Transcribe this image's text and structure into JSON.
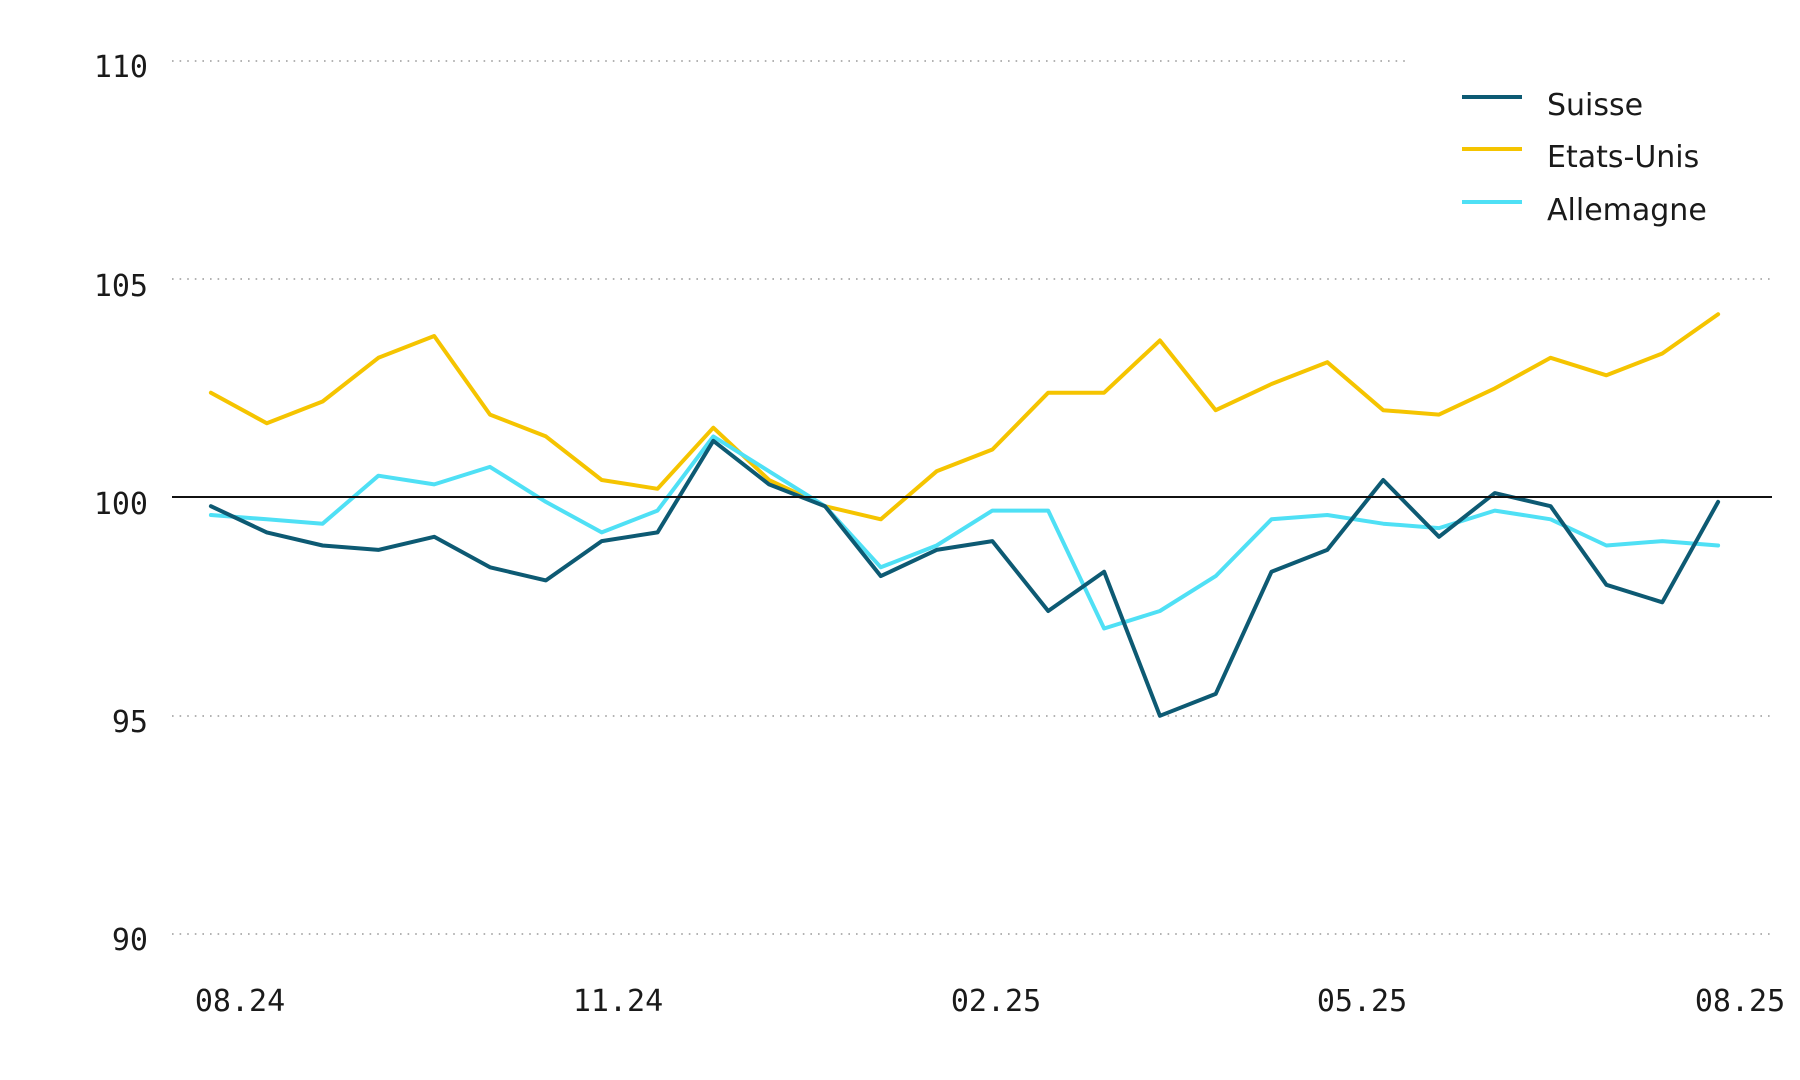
{
  "chart_data": {
    "type": "line",
    "title": "",
    "xlabel": "",
    "ylabel": "",
    "ylim": [
      90,
      110
    ],
    "yticks": [
      "110",
      "105",
      "100",
      "95",
      "90"
    ],
    "xticks": [
      "08.24",
      "11.24",
      "02.25",
      "05.25",
      "08.25"
    ],
    "x_range": [
      "2024-08",
      "2025-08"
    ],
    "baseline": 100,
    "grid": "horizontal dotted",
    "legend_position": "top-right",
    "x": [
      "2024-08-05",
      "2024-08-19",
      "2024-09-02",
      "2024-09-16",
      "2024-09-30",
      "2024-10-14",
      "2024-10-28",
      "2024-11-11",
      "2024-11-25",
      "2024-12-09",
      "2024-12-23",
      "2025-01-06",
      "2025-01-20",
      "2025-02-03",
      "2025-02-17",
      "2025-03-03",
      "2025-03-17",
      "2025-03-31",
      "2025-04-14",
      "2025-04-28",
      "2025-05-12",
      "2025-05-26",
      "2025-06-09",
      "2025-06-23",
      "2025-07-07",
      "2025-07-21",
      "2025-08-04",
      "2025-08-18"
    ],
    "series": [
      {
        "name": "Suisse",
        "color": "#0d5a73",
        "values": [
          99.8,
          99.2,
          98.9,
          98.8,
          99.1,
          98.4,
          98.1,
          99.0,
          99.2,
          101.3,
          100.3,
          99.8,
          98.2,
          98.8,
          99.0,
          97.4,
          98.3,
          95.0,
          95.5,
          98.3,
          98.8,
          100.4,
          99.1,
          100.1,
          99.8,
          98.0,
          97.6,
          99.9
        ]
      },
      {
        "name": "Etats-Unis",
        "color": "#f5c400",
        "values": [
          102.4,
          101.7,
          102.2,
          103.2,
          103.7,
          101.9,
          101.4,
          100.4,
          100.2,
          101.6,
          100.4,
          99.8,
          99.5,
          100.6,
          101.1,
          102.4,
          102.4,
          103.6,
          102.0,
          102.6,
          103.1,
          102.0,
          101.9,
          102.5,
          103.2,
          102.8,
          103.3,
          104.2
        ]
      },
      {
        "name": "Allemagne",
        "color": "#4fe0f5",
        "values": [
          99.6,
          99.5,
          99.4,
          100.5,
          100.3,
          100.7,
          99.9,
          99.2,
          99.7,
          101.4,
          100.6,
          99.8,
          98.4,
          98.9,
          99.7,
          99.7,
          97.0,
          97.4,
          98.2,
          99.5,
          99.6,
          99.4,
          99.3,
          99.7,
          99.5,
          98.9,
          99.0,
          98.9
        ]
      }
    ]
  }
}
